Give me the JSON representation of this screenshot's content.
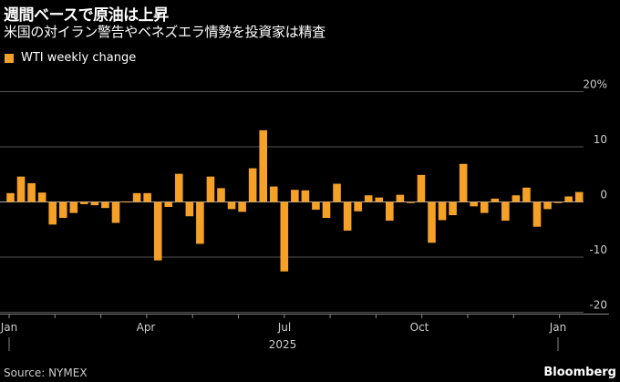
{
  "header": {
    "title": "週間ベースで原油は上昇",
    "subtitle": "米国の対イラン警告やベネズエラ情勢を投資家は精査"
  },
  "footer": {
    "source": "Source: NYMEX",
    "brand": "Bloomberg"
  },
  "colors": {
    "bar": "#f5a128",
    "grid": "#555555",
    "zero_line": "#aaaaaa",
    "text": "#cccccc"
  },
  "chart_data": {
    "type": "bar",
    "series": [
      {
        "name": "WTI weekly change",
        "values": [
          1.6,
          4.6,
          3.4,
          1.7,
          -4.1,
          -2.9,
          -2.0,
          -0.4,
          -0.6,
          -1.1,
          -3.8,
          0.1,
          1.6,
          1.6,
          -10.6,
          -0.9,
          5.1,
          -2.6,
          -7.6,
          4.6,
          2.5,
          -1.3,
          -1.8,
          6.1,
          13.0,
          2.8,
          -12.6,
          2.2,
          2.1,
          -1.4,
          -2.9,
          3.3,
          -5.2,
          -1.7,
          1.2,
          0.8,
          -3.4,
          1.3,
          0.0,
          4.9,
          -7.4,
          -3.3,
          -2.4,
          6.9,
          -0.8,
          -2.0,
          0.6,
          -3.4,
          1.2,
          2.6,
          -4.5,
          -1.3,
          0.0,
          1.0,
          1.8
        ]
      }
    ],
    "x_ticks": [
      "Jan",
      "Apr",
      "Jul",
      "Oct",
      "Jan"
    ],
    "x_year_label": "2025",
    "y_ticks": [
      "20%",
      "10",
      "0",
      "-10",
      "-20"
    ],
    "ylim": [
      -20,
      20
    ],
    "grid": true,
    "legend_position": "top-left"
  }
}
